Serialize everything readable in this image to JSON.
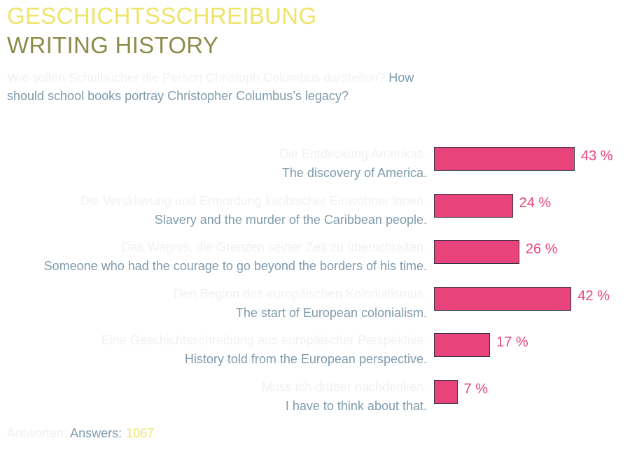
{
  "header": {
    "title_de": "GESCHICHTSSCHREIBUNG",
    "title_en": "WRITING HISTORY"
  },
  "question": {
    "de": "Wie sollen Schulbücher die Person Christoph Columbus darstellen?",
    "en": "How should school books portray Christopher Columbus’s legacy?"
  },
  "colors": {
    "bar": "#e8437b",
    "title_de": "#ede46a",
    "title_en": "#8c8c4c",
    "text": "#7f9bad"
  },
  "chart_data": {
    "type": "bar",
    "orientation": "horizontal",
    "unit": "%",
    "categories": [
      "The discovery of America.",
      "Slavery and the murder of the Caribbean people.",
      "Someone who had the courage to go beyond the borders of his time.",
      "The start of European colonialism.",
      "History told from the European perspective.",
      "I have to think about that."
    ],
    "categories_de": [
      "Die Entdeckung Amerikas.",
      "Die Versklavung und Ermordung karibischer Einwohner:innen.",
      "Das Wagnis, die Grenzen seiner Zeit zu überschreiten.",
      "Den Beginn des europäischen Kolonialismus.",
      "Eine Geschichtsschreibung aus europäischer Perspektive.",
      "Muss ich drüber nachdenken."
    ],
    "values": [
      43,
      24,
      26,
      42,
      17,
      7
    ],
    "labels": [
      "43 %",
      "24 %",
      "26 %",
      "42 %",
      "17 %",
      "7 %"
    ]
  },
  "footer": {
    "answers_de": "Antworten:",
    "answers_en": "Answers:",
    "count": "1067"
  }
}
